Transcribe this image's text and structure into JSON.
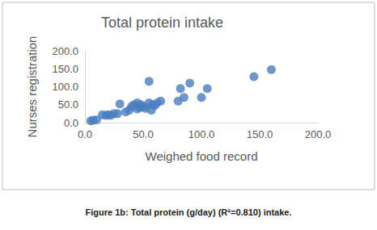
{
  "chart_data": {
    "type": "scatter",
    "title": "Total protein intake",
    "x_label": "Weighed food record",
    "y_label": "Nurses registration",
    "caption": {
      "label": "Figure 1b:",
      "text": "Total protein (g/day) (R²=0.810) intake."
    },
    "x": [
      5,
      7,
      10,
      15,
      18,
      20,
      22,
      25,
      28,
      30,
      35,
      38,
      40,
      42,
      45,
      45,
      47,
      48,
      50,
      52,
      55,
      55,
      57,
      58,
      60,
      62,
      65,
      80,
      82,
      85,
      90,
      100,
      105,
      145,
      160
    ],
    "values": [
      5,
      7,
      8,
      22,
      20,
      22,
      20,
      25,
      25,
      52,
      30,
      35,
      45,
      50,
      55,
      38,
      42,
      50,
      45,
      40,
      55,
      115,
      35,
      50,
      48,
      55,
      60,
      60,
      95,
      70,
      110,
      70,
      95,
      128,
      148
    ],
    "color": "#4a7ebf",
    "marker": "circle",
    "xlim": [
      0,
      200
    ],
    "ylim": [
      0,
      200
    ],
    "xticks": [
      {
        "value": 0,
        "label": "0.0"
      },
      {
        "value": 50,
        "label": "50.0"
      },
      {
        "value": 100,
        "label": "100.0"
      },
      {
        "value": 150,
        "label": "150.0"
      },
      {
        "value": 200,
        "label": "200.0"
      }
    ],
    "yticks": [
      {
        "value": 0,
        "label": "0.0"
      },
      {
        "value": 50,
        "label": "50.0"
      },
      {
        "value": 100,
        "label": "100.0"
      },
      {
        "value": 150,
        "label": "150.0"
      },
      {
        "value": 200,
        "label": "200.0"
      }
    ],
    "grid": false
  }
}
